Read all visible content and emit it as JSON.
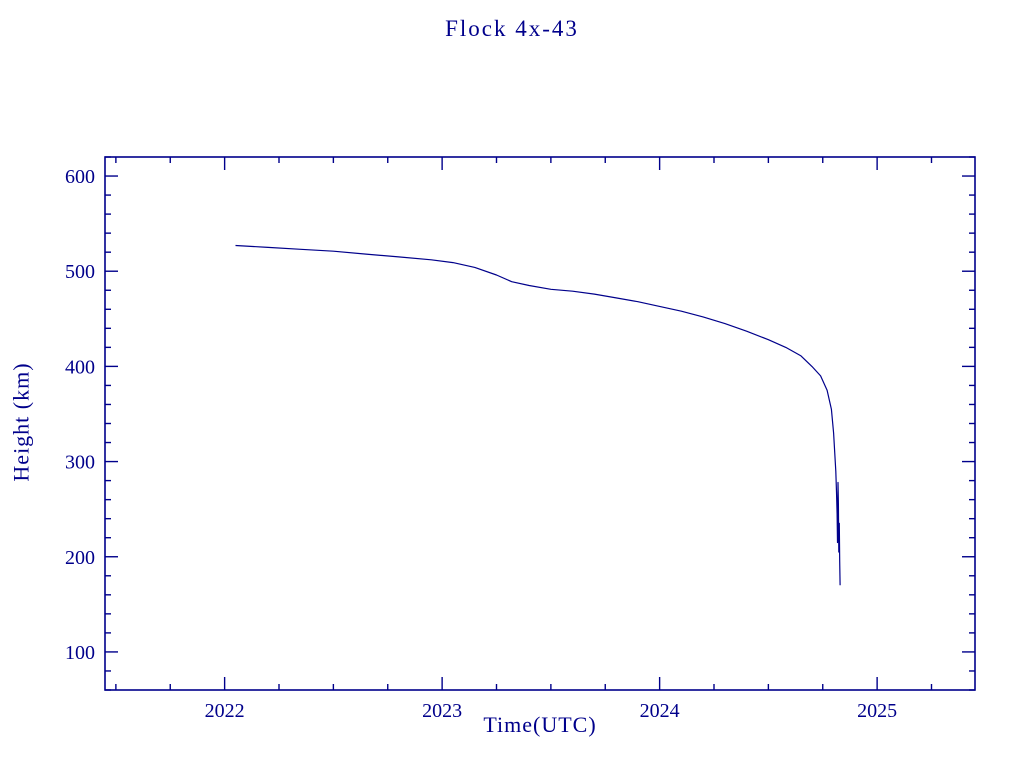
{
  "chart_data": {
    "type": "line",
    "title": "Flock 4x-43",
    "xlabel": "Time(UTC)",
    "ylabel": "Height (km)",
    "color": "#00008b",
    "xlim": [
      2021.45,
      2025.45
    ],
    "ylim": [
      60,
      620
    ],
    "xticks": [
      2022,
      2023,
      2024,
      2025
    ],
    "yticks": [
      100,
      200,
      300,
      400,
      500,
      600
    ],
    "x_minor_step": 0.25,
    "y_minor_step": 20,
    "grid": false,
    "legend": "none",
    "series": [
      {
        "name": "Flock 4x-43",
        "x": [
          2022.05,
          2022.2,
          2022.35,
          2022.5,
          2022.65,
          2022.8,
          2022.95,
          2023.05,
          2023.15,
          2023.25,
          2023.32,
          2023.4,
          2023.5,
          2023.6,
          2023.7,
          2023.8,
          2023.9,
          2024.0,
          2024.1,
          2024.2,
          2024.3,
          2024.4,
          2024.5,
          2024.58,
          2024.65,
          2024.7,
          2024.74,
          2024.77,
          2024.79,
          2024.8,
          2024.805,
          2024.81,
          2024.813,
          2024.816,
          2024.818,
          2024.82,
          2024.822,
          2024.824,
          2024.826,
          2024.828,
          2024.83
        ],
        "y": [
          527,
          525,
          523,
          521,
          518,
          515,
          512,
          509,
          504,
          496,
          489,
          485,
          481,
          479,
          476,
          472,
          468,
          463,
          458,
          452,
          445,
          437,
          428,
          420,
          411,
          400,
          390,
          375,
          355,
          330,
          310,
          290,
          268,
          245,
          215,
          278,
          255,
          205,
          235,
          195,
          170
        ]
      }
    ]
  }
}
